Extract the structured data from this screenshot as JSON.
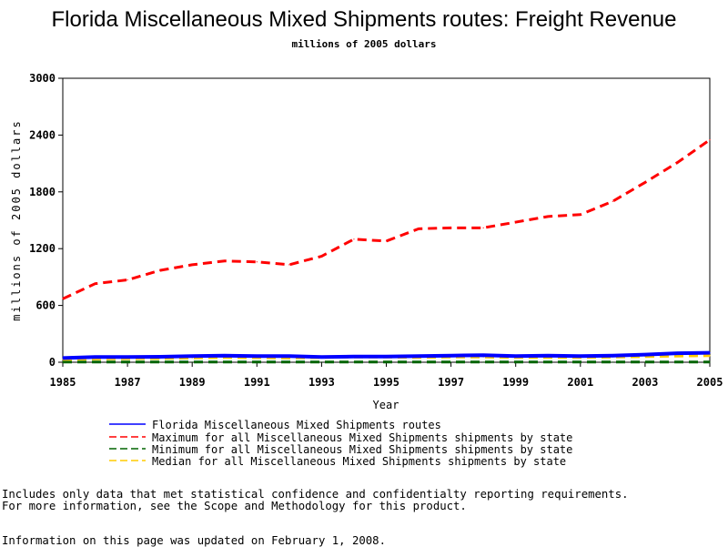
{
  "colors": {
    "florida": "#0000ff",
    "maximum": "#ff0000",
    "minimum": "#006400",
    "median": "#ffcc00"
  },
  "notes": {
    "line1": "Includes only data that met statistical confidence and confidentialty reporting requirements.",
    "line2": "For more information, see the Scope and Methodology for this product.",
    "line3": "Information on this page was updated on February 1, 2008."
  },
  "chart_data": {
    "type": "line",
    "title": "Florida Miscellaneous Mixed Shipments routes: Freight Revenue",
    "subtitle": "millions of 2005 dollars",
    "xlabel": "Year",
    "ylabel": "millions of 2005 dollars",
    "xlim": [
      1985,
      2005
    ],
    "ylim": [
      0,
      3000
    ],
    "x_ticks": [
      "1985",
      "1987",
      "1989",
      "1991",
      "1993",
      "1995",
      "1997",
      "1999",
      "2001",
      "2003",
      "2005"
    ],
    "y_ticks": [
      "0",
      "600",
      "1200",
      "1800",
      "2400",
      "3000"
    ],
    "grid": false,
    "legend_position": "bottom",
    "x": [
      1985,
      1986,
      1987,
      1988,
      1989,
      1990,
      1991,
      1992,
      1993,
      1994,
      1995,
      1996,
      1997,
      1998,
      1999,
      2000,
      2001,
      2002,
      2003,
      2004,
      2005
    ],
    "series": [
      {
        "name": "Florida Miscellaneous Mixed Shipments routes",
        "style": "solid",
        "values": [
          45,
          55,
          55,
          58,
          65,
          70,
          65,
          65,
          55,
          60,
          60,
          65,
          70,
          75,
          65,
          70,
          65,
          70,
          80,
          95,
          100
        ]
      },
      {
        "name": "Maximum for all Miscellaneous Mixed Shipments shipments by state",
        "style": "dashed",
        "values": [
          670,
          830,
          870,
          970,
          1030,
          1070,
          1060,
          1030,
          1120,
          1300,
          1280,
          1410,
          1420,
          1420,
          1480,
          1540,
          1560,
          1700,
          1900,
          2110,
          2350
        ]
      },
      {
        "name": "Minimum for all Miscellaneous Mixed Shipments shipments by state",
        "style": "dashed",
        "values": [
          2,
          2,
          2,
          2,
          2,
          2,
          2,
          2,
          2,
          2,
          2,
          2,
          2,
          2,
          2,
          2,
          2,
          2,
          2,
          2,
          2
        ]
      },
      {
        "name": "Median for all Miscellaneous Mixed Shipments shipments by state",
        "style": "dashed",
        "values": [
          30,
          35,
          38,
          40,
          45,
          50,
          48,
          45,
          50,
          55,
          55,
          50,
          55,
          55,
          50,
          50,
          50,
          55,
          60,
          65,
          70
        ]
      }
    ]
  }
}
